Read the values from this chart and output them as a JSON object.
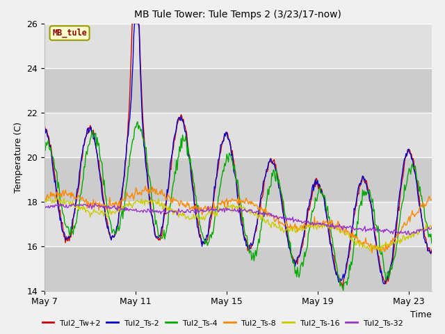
{
  "title": "MB Tule Tower: Tule Temps 2 (3/23/17-now)",
  "xlabel": "Time",
  "ylabel": "Temperature (C)",
  "ylim": [
    14,
    26
  ],
  "yticks": [
    14,
    16,
    18,
    20,
    22,
    24,
    26
  ],
  "xlim": [
    0,
    17
  ],
  "xtick_positions": [
    0,
    4,
    8,
    12,
    16
  ],
  "xtick_labels": [
    "May 7",
    "May 11",
    "May 15",
    "May 19",
    "May 23"
  ],
  "fig_bg_color": "#f0f0f0",
  "plot_bg_color": "#e8e8e8",
  "band_colors": [
    "#d8d8d8",
    "#e8e8e8"
  ],
  "legend_label": "MB_tule",
  "series_colors": [
    "#cc0000",
    "#0000cc",
    "#00aa00",
    "#ff8800",
    "#cccc00",
    "#9933cc"
  ],
  "series_names": [
    "Tul2_Tw+2",
    "Tul2_Ts-2",
    "Tul2_Ts-4",
    "Tul2_Ts-8",
    "Tul2_Ts-16",
    "Tul2_Ts-32"
  ]
}
